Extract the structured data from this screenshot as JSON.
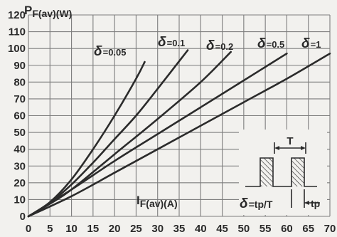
{
  "chart_data": {
    "type": "line",
    "title": "",
    "ylabel": {
      "main": "P",
      "sub": "F(av)(W)"
    },
    "xlabel": {
      "main": "I",
      "sub": "F(av)(A)"
    },
    "xlim": [
      0,
      70
    ],
    "ylim": [
      0,
      120
    ],
    "x_ticks": [
      "0",
      "5",
      "10",
      "15",
      "20",
      "25",
      "30",
      "35",
      "40",
      "45",
      "50",
      "55",
      "60",
      "65",
      "70"
    ],
    "y_ticks": [
      "0",
      "10",
      "20",
      "30",
      "40",
      "50",
      "60",
      "70",
      "80",
      "90",
      "100",
      "110",
      "120"
    ],
    "grid": true,
    "series": [
      {
        "name": "δ=0.05",
        "symbol": "δ",
        "value_label": "=0.05",
        "x": [
          0,
          5,
          10,
          15,
          20,
          25,
          27
        ],
        "y": [
          0,
          8.5,
          22,
          40,
          60,
          82,
          92
        ]
      },
      {
        "name": "δ=0.1",
        "symbol": "δ",
        "value_label": "=0.1",
        "x": [
          0,
          5,
          10,
          15,
          20,
          25,
          30,
          37
        ],
        "y": [
          0,
          8,
          19,
          32,
          46,
          60,
          76,
          99
        ]
      },
      {
        "name": "δ=0.2",
        "symbol": "δ",
        "value_label": "=0.2",
        "x": [
          0,
          5,
          10,
          20,
          30,
          40,
          47
        ],
        "y": [
          0,
          7.5,
          16,
          37,
          58,
          80,
          98
        ]
      },
      {
        "name": "δ=0.5",
        "symbol": "δ",
        "value_label": "=0.5",
        "x": [
          0,
          10,
          20,
          30,
          40,
          50,
          60
        ],
        "y": [
          0,
          16,
          33,
          49,
          65,
          81,
          97
        ]
      },
      {
        "name": "δ=1",
        "symbol": "δ",
        "value_label": "=1",
        "x": [
          0,
          10,
          20,
          30,
          40,
          50,
          60,
          70
        ],
        "y": [
          0,
          12,
          26,
          40,
          54,
          68,
          82,
          97
        ]
      }
    ],
    "inset": {
      "period_label": "T",
      "pulse_label": "tp",
      "formula_symbol": "δ",
      "formula_text": "=tp/T"
    }
  }
}
